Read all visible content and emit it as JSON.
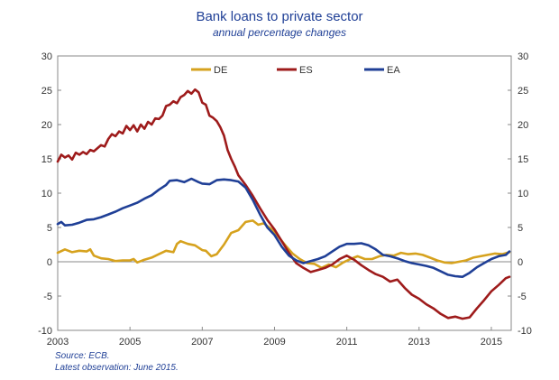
{
  "chart_data": {
    "type": "line",
    "title": "Bank loans to private sector",
    "subtitle": "annual percentage changes",
    "xlabel": "",
    "ylabel": "",
    "xlim": [
      2003,
      2015.55
    ],
    "ylim": [
      -10,
      30
    ],
    "y_ticks": [
      "30",
      "25",
      "20",
      "15",
      "10",
      "5",
      "0",
      "-5",
      "-10"
    ],
    "x_ticks": [
      "2003",
      "2005",
      "2007",
      "2009",
      "2011",
      "2013",
      "2015"
    ],
    "grid": false,
    "legend_position": "top",
    "source_lines": [
      "Source: ECB.",
      "Latest observation: June  2015."
    ],
    "series": [
      {
        "name": "DE",
        "color": "#d6a21e",
        "points": [
          [
            2003.0,
            1.3
          ],
          [
            2003.2,
            1.8
          ],
          [
            2003.4,
            1.4
          ],
          [
            2003.6,
            1.6
          ],
          [
            2003.8,
            1.5
          ],
          [
            2003.9,
            1.8
          ],
          [
            2004.0,
            0.9
          ],
          [
            2004.2,
            0.5
          ],
          [
            2004.4,
            0.4
          ],
          [
            2004.6,
            0.1
          ],
          [
            2004.8,
            0.2
          ],
          [
            2005.0,
            0.2
          ],
          [
            2005.1,
            0.4
          ],
          [
            2005.2,
            -0.1
          ],
          [
            2005.4,
            0.3
          ],
          [
            2005.6,
            0.6
          ],
          [
            2005.8,
            1.1
          ],
          [
            2006.0,
            1.6
          ],
          [
            2006.2,
            1.4
          ],
          [
            2006.3,
            2.6
          ],
          [
            2006.4,
            3.0
          ],
          [
            2006.6,
            2.6
          ],
          [
            2006.8,
            2.4
          ],
          [
            2007.0,
            1.7
          ],
          [
            2007.1,
            1.6
          ],
          [
            2007.25,
            0.8
          ],
          [
            2007.4,
            1.1
          ],
          [
            2007.6,
            2.5
          ],
          [
            2007.8,
            4.2
          ],
          [
            2008.0,
            4.6
          ],
          [
            2008.2,
            5.8
          ],
          [
            2008.4,
            6.0
          ],
          [
            2008.55,
            5.4
          ],
          [
            2008.7,
            5.6
          ],
          [
            2008.9,
            4.8
          ],
          [
            2009.1,
            3.7
          ],
          [
            2009.3,
            2.4
          ],
          [
            2009.5,
            1.2
          ],
          [
            2009.7,
            0.4
          ],
          [
            2009.9,
            -0.2
          ],
          [
            2010.1,
            -0.3
          ],
          [
            2010.3,
            -0.9
          ],
          [
            2010.5,
            -0.4
          ],
          [
            2010.7,
            -0.8
          ],
          [
            2010.9,
            -0.1
          ],
          [
            2011.1,
            0.4
          ],
          [
            2011.3,
            0.8
          ],
          [
            2011.5,
            0.4
          ],
          [
            2011.7,
            0.4
          ],
          [
            2011.9,
            0.8
          ],
          [
            2012.1,
            1.0
          ],
          [
            2012.3,
            0.9
          ],
          [
            2012.5,
            1.3
          ],
          [
            2012.7,
            1.1
          ],
          [
            2012.9,
            1.2
          ],
          [
            2013.1,
            1.0
          ],
          [
            2013.3,
            0.6
          ],
          [
            2013.5,
            0.2
          ],
          [
            2013.7,
            -0.1
          ],
          [
            2013.9,
            -0.2
          ],
          [
            2014.1,
            0.0
          ],
          [
            2014.3,
            0.2
          ],
          [
            2014.5,
            0.6
          ],
          [
            2014.7,
            0.8
          ],
          [
            2014.9,
            1.0
          ],
          [
            2015.1,
            1.2
          ],
          [
            2015.3,
            1.1
          ],
          [
            2015.5,
            1.4
          ]
        ]
      },
      {
        "name": "ES",
        "color": "#9e1b1b",
        "points": [
          [
            2003.0,
            14.6
          ],
          [
            2003.1,
            15.6
          ],
          [
            2003.2,
            15.2
          ],
          [
            2003.3,
            15.5
          ],
          [
            2003.4,
            14.9
          ],
          [
            2003.5,
            15.9
          ],
          [
            2003.6,
            15.6
          ],
          [
            2003.7,
            16.0
          ],
          [
            2003.8,
            15.7
          ],
          [
            2003.9,
            16.3
          ],
          [
            2004.0,
            16.1
          ],
          [
            2004.2,
            17.0
          ],
          [
            2004.3,
            16.8
          ],
          [
            2004.4,
            17.9
          ],
          [
            2004.5,
            18.6
          ],
          [
            2004.6,
            18.3
          ],
          [
            2004.7,
            19.0
          ],
          [
            2004.8,
            18.7
          ],
          [
            2004.9,
            19.8
          ],
          [
            2005.0,
            19.2
          ],
          [
            2005.1,
            19.9
          ],
          [
            2005.2,
            19.0
          ],
          [
            2005.3,
            20.0
          ],
          [
            2005.4,
            19.4
          ],
          [
            2005.5,
            20.4
          ],
          [
            2005.6,
            20.0
          ],
          [
            2005.7,
            20.9
          ],
          [
            2005.8,
            20.8
          ],
          [
            2005.9,
            21.3
          ],
          [
            2006.0,
            22.7
          ],
          [
            2006.1,
            22.9
          ],
          [
            2006.2,
            23.4
          ],
          [
            2006.3,
            23.1
          ],
          [
            2006.4,
            24.0
          ],
          [
            2006.5,
            24.3
          ],
          [
            2006.6,
            24.9
          ],
          [
            2006.7,
            24.5
          ],
          [
            2006.8,
            25.1
          ],
          [
            2006.9,
            24.7
          ],
          [
            2007.0,
            23.2
          ],
          [
            2007.1,
            22.9
          ],
          [
            2007.2,
            21.3
          ],
          [
            2007.3,
            21.0
          ],
          [
            2007.4,
            20.5
          ],
          [
            2007.5,
            19.6
          ],
          [
            2007.6,
            18.4
          ],
          [
            2007.7,
            16.3
          ],
          [
            2007.8,
            15.0
          ],
          [
            2007.9,
            13.9
          ],
          [
            2008.0,
            12.6
          ],
          [
            2008.2,
            11.2
          ],
          [
            2008.4,
            9.6
          ],
          [
            2008.6,
            7.8
          ],
          [
            2008.8,
            6.1
          ],
          [
            2009.0,
            4.7
          ],
          [
            2009.2,
            3.0
          ],
          [
            2009.4,
            1.3
          ],
          [
            2009.6,
            -0.2
          ],
          [
            2009.8,
            -0.9
          ],
          [
            2010.0,
            -1.5
          ],
          [
            2010.2,
            -1.2
          ],
          [
            2010.4,
            -0.9
          ],
          [
            2010.6,
            -0.4
          ],
          [
            2010.8,
            0.4
          ],
          [
            2011.0,
            0.9
          ],
          [
            2011.2,
            0.3
          ],
          [
            2011.4,
            -0.5
          ],
          [
            2011.6,
            -1.2
          ],
          [
            2011.8,
            -1.8
          ],
          [
            2012.0,
            -2.2
          ],
          [
            2012.2,
            -2.9
          ],
          [
            2012.4,
            -2.6
          ],
          [
            2012.6,
            -3.8
          ],
          [
            2012.8,
            -4.8
          ],
          [
            2013.0,
            -5.4
          ],
          [
            2013.2,
            -6.2
          ],
          [
            2013.4,
            -6.8
          ],
          [
            2013.6,
            -7.6
          ],
          [
            2013.8,
            -8.2
          ],
          [
            2014.0,
            -8.0
          ],
          [
            2014.2,
            -8.3
          ],
          [
            2014.4,
            -8.1
          ],
          [
            2014.6,
            -6.8
          ],
          [
            2014.8,
            -5.6
          ],
          [
            2015.0,
            -4.3
          ],
          [
            2015.2,
            -3.4
          ],
          [
            2015.4,
            -2.4
          ],
          [
            2015.5,
            -2.2
          ]
        ]
      },
      {
        "name": "EA",
        "color": "#1f3f96",
        "points": [
          [
            2003.0,
            5.5
          ],
          [
            2003.1,
            5.8
          ],
          [
            2003.2,
            5.3
          ],
          [
            2003.4,
            5.4
          ],
          [
            2003.6,
            5.7
          ],
          [
            2003.8,
            6.1
          ],
          [
            2004.0,
            6.2
          ],
          [
            2004.2,
            6.5
          ],
          [
            2004.4,
            6.9
          ],
          [
            2004.6,
            7.3
          ],
          [
            2004.8,
            7.8
          ],
          [
            2005.0,
            8.2
          ],
          [
            2005.2,
            8.6
          ],
          [
            2005.4,
            9.2
          ],
          [
            2005.6,
            9.7
          ],
          [
            2005.8,
            10.5
          ],
          [
            2006.0,
            11.2
          ],
          [
            2006.1,
            11.8
          ],
          [
            2006.3,
            11.9
          ],
          [
            2006.5,
            11.6
          ],
          [
            2006.7,
            12.1
          ],
          [
            2006.9,
            11.6
          ],
          [
            2007.0,
            11.4
          ],
          [
            2007.2,
            11.3
          ],
          [
            2007.4,
            11.9
          ],
          [
            2007.6,
            12.0
          ],
          [
            2007.8,
            11.9
          ],
          [
            2008.0,
            11.7
          ],
          [
            2008.2,
            10.8
          ],
          [
            2008.4,
            9.0
          ],
          [
            2008.6,
            6.9
          ],
          [
            2008.8,
            5.0
          ],
          [
            2009.0,
            3.9
          ],
          [
            2009.2,
            2.2
          ],
          [
            2009.4,
            0.9
          ],
          [
            2009.6,
            0.2
          ],
          [
            2009.8,
            -0.2
          ],
          [
            2010.0,
            0.1
          ],
          [
            2010.2,
            0.4
          ],
          [
            2010.4,
            0.8
          ],
          [
            2010.6,
            1.5
          ],
          [
            2010.8,
            2.2
          ],
          [
            2011.0,
            2.6
          ],
          [
            2011.2,
            2.6
          ],
          [
            2011.4,
            2.7
          ],
          [
            2011.6,
            2.4
          ],
          [
            2011.8,
            1.8
          ],
          [
            2012.0,
            1.0
          ],
          [
            2012.2,
            0.8
          ],
          [
            2012.4,
            0.5
          ],
          [
            2012.6,
            0.1
          ],
          [
            2012.8,
            -0.2
          ],
          [
            2013.0,
            -0.4
          ],
          [
            2013.2,
            -0.6
          ],
          [
            2013.4,
            -0.9
          ],
          [
            2013.6,
            -1.4
          ],
          [
            2013.8,
            -1.9
          ],
          [
            2014.0,
            -2.1
          ],
          [
            2014.2,
            -2.2
          ],
          [
            2014.4,
            -1.6
          ],
          [
            2014.6,
            -0.8
          ],
          [
            2014.8,
            -0.2
          ],
          [
            2015.0,
            0.4
          ],
          [
            2015.2,
            0.8
          ],
          [
            2015.4,
            1.0
          ],
          [
            2015.5,
            1.5
          ]
        ]
      }
    ]
  }
}
